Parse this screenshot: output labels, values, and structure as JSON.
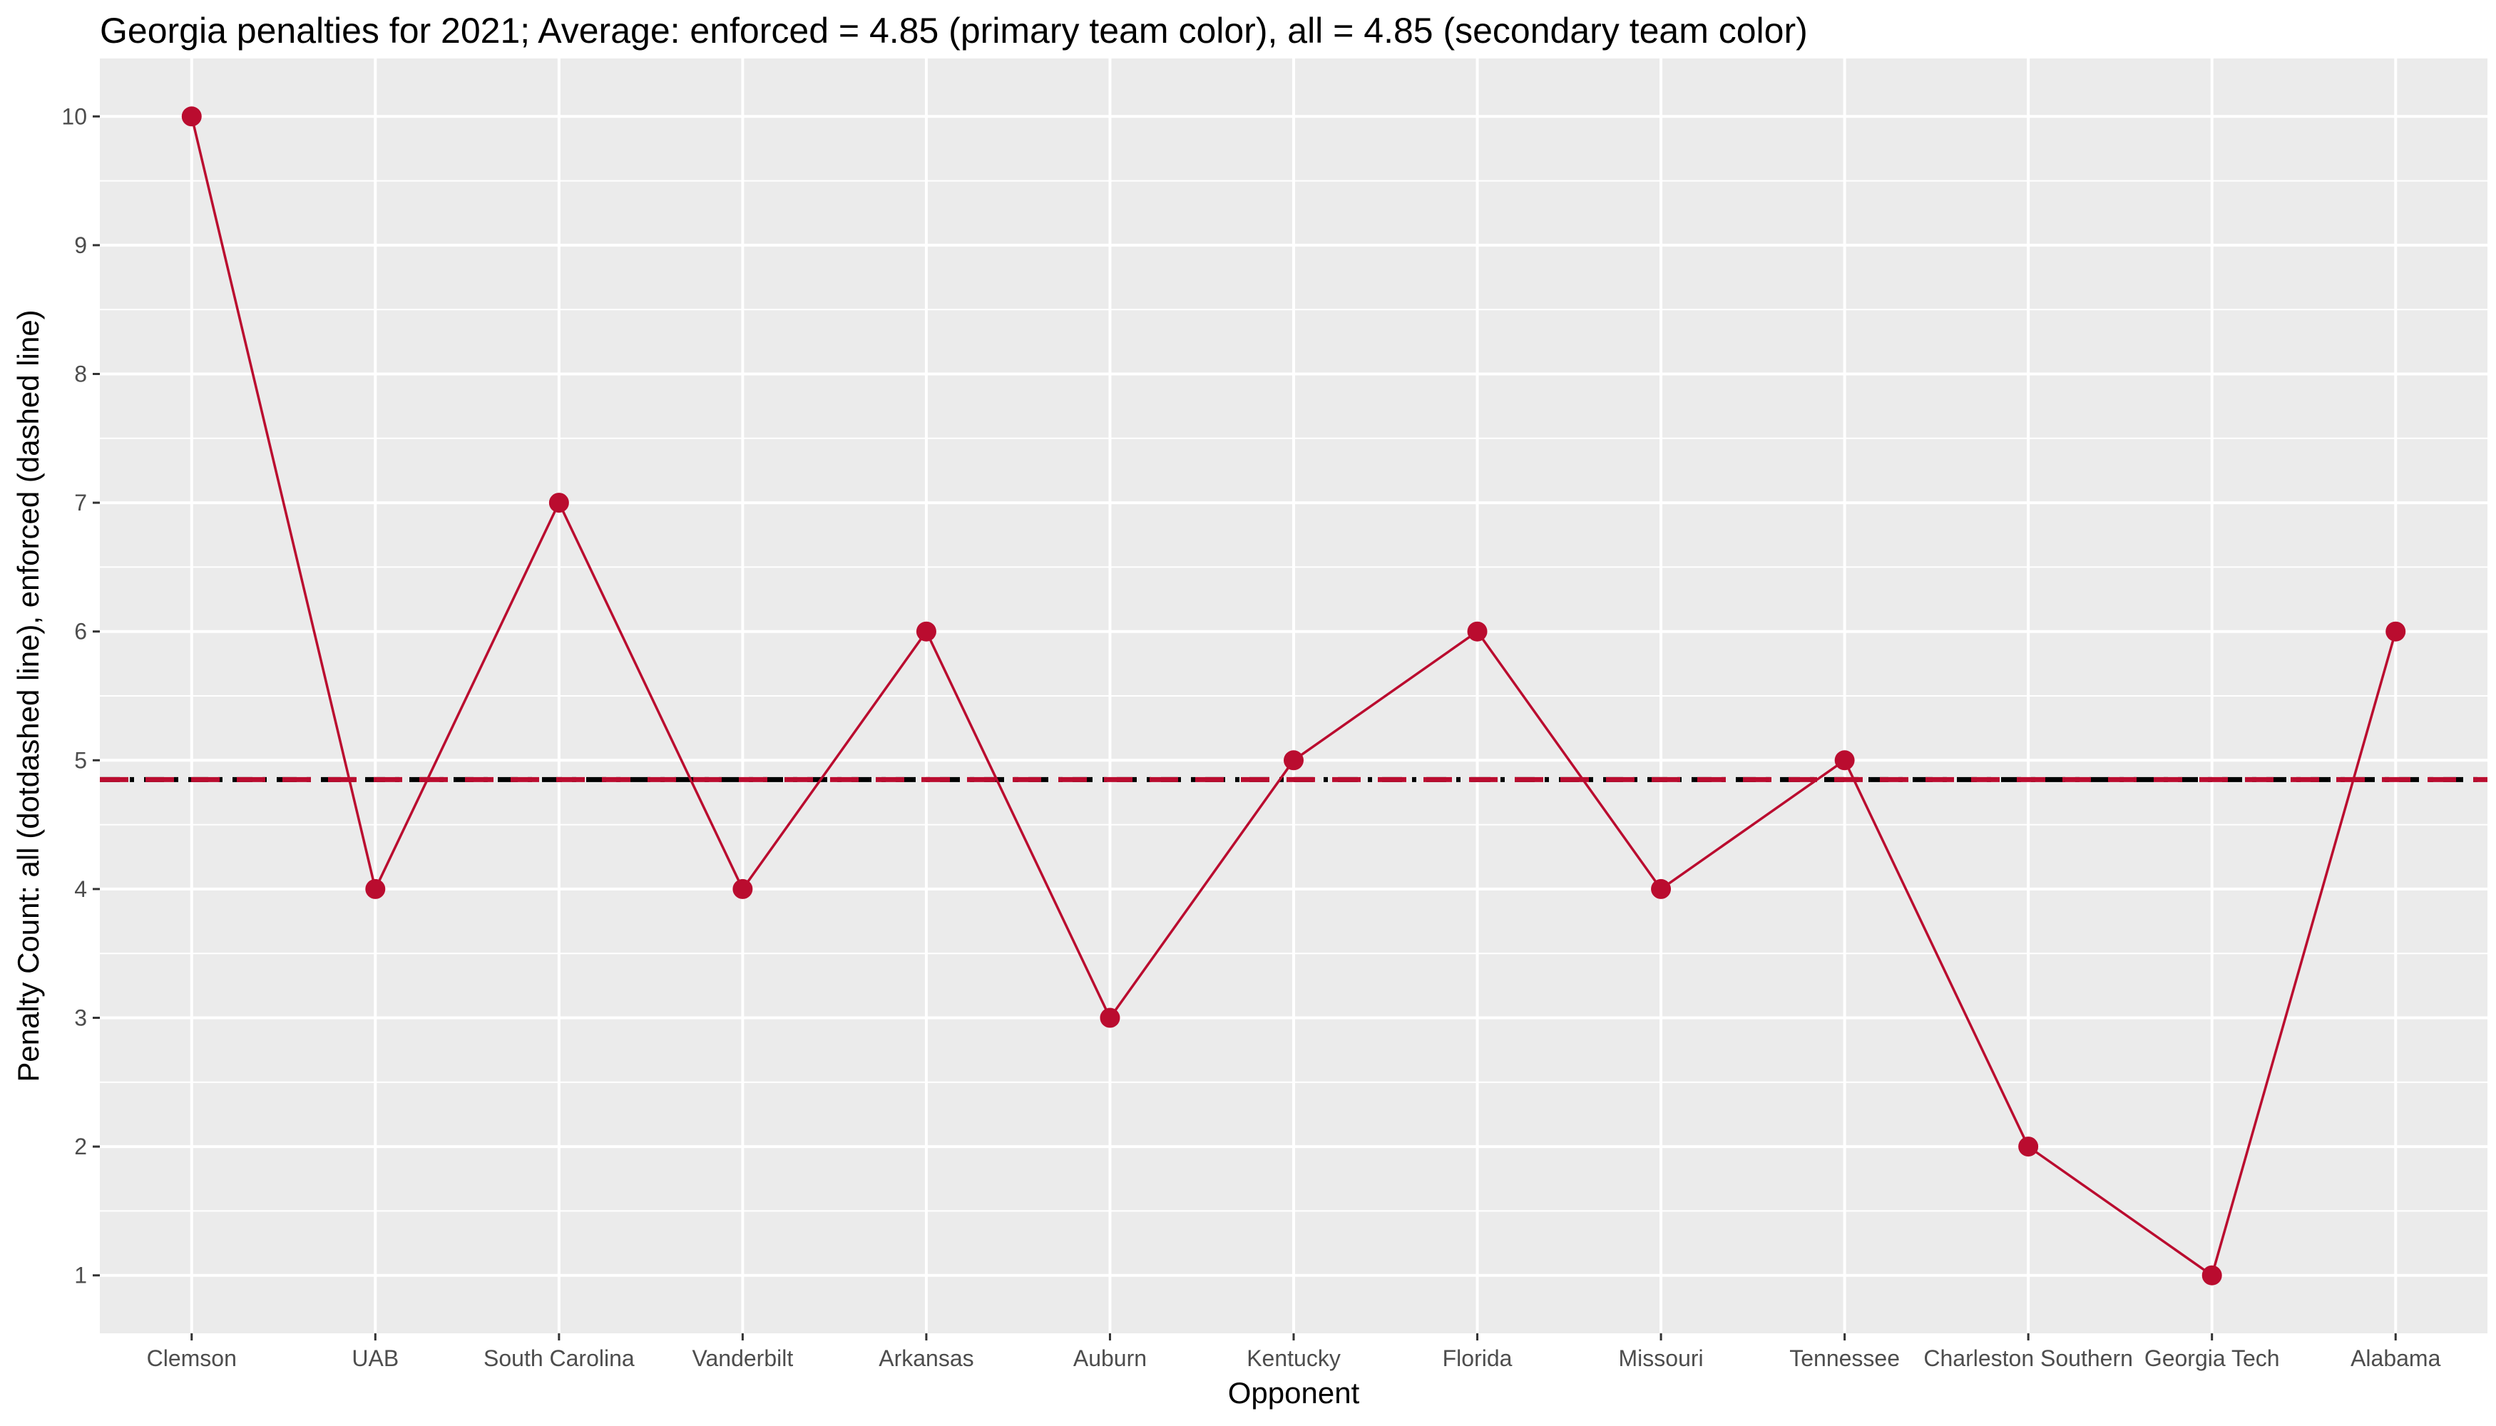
{
  "chart_data": {
    "type": "line",
    "title": "Georgia penalties for 2021; Average: enforced = 4.85 (primary team color), all = 4.85 (secondary team color)",
    "xlabel": "Opponent",
    "ylabel": "Penalty Count: all (dotdashed line), enforced (dashed line)",
    "categories": [
      "Clemson",
      "UAB",
      "South Carolina",
      "Vanderbilt",
      "Arkansas",
      "Auburn",
      "Kentucky",
      "Florida",
      "Missouri",
      "Tennessee",
      "Charleston Southern",
      "Georgia Tech",
      "Alabama"
    ],
    "series": [
      {
        "values": [
          10,
          4,
          7,
          4,
          6,
          3,
          5,
          6,
          4,
          5,
          2,
          1,
          6
        ],
        "color": "#BA0C2F"
      }
    ],
    "reference_lines": [
      {
        "value": 4.85,
        "style": "dotdash",
        "color": "#000000"
      },
      {
        "value": 4.85,
        "style": "dashed",
        "color": "#BA0C2F"
      }
    ],
    "yticks": [
      1,
      2,
      3,
      4,
      5,
      6,
      7,
      8,
      9,
      10
    ],
    "ylim": [
      0.55,
      10.45
    ],
    "grid": true,
    "panel_background": "#EBEBEB",
    "primary_color": "#BA0C2F",
    "secondary_color": "#000000"
  }
}
